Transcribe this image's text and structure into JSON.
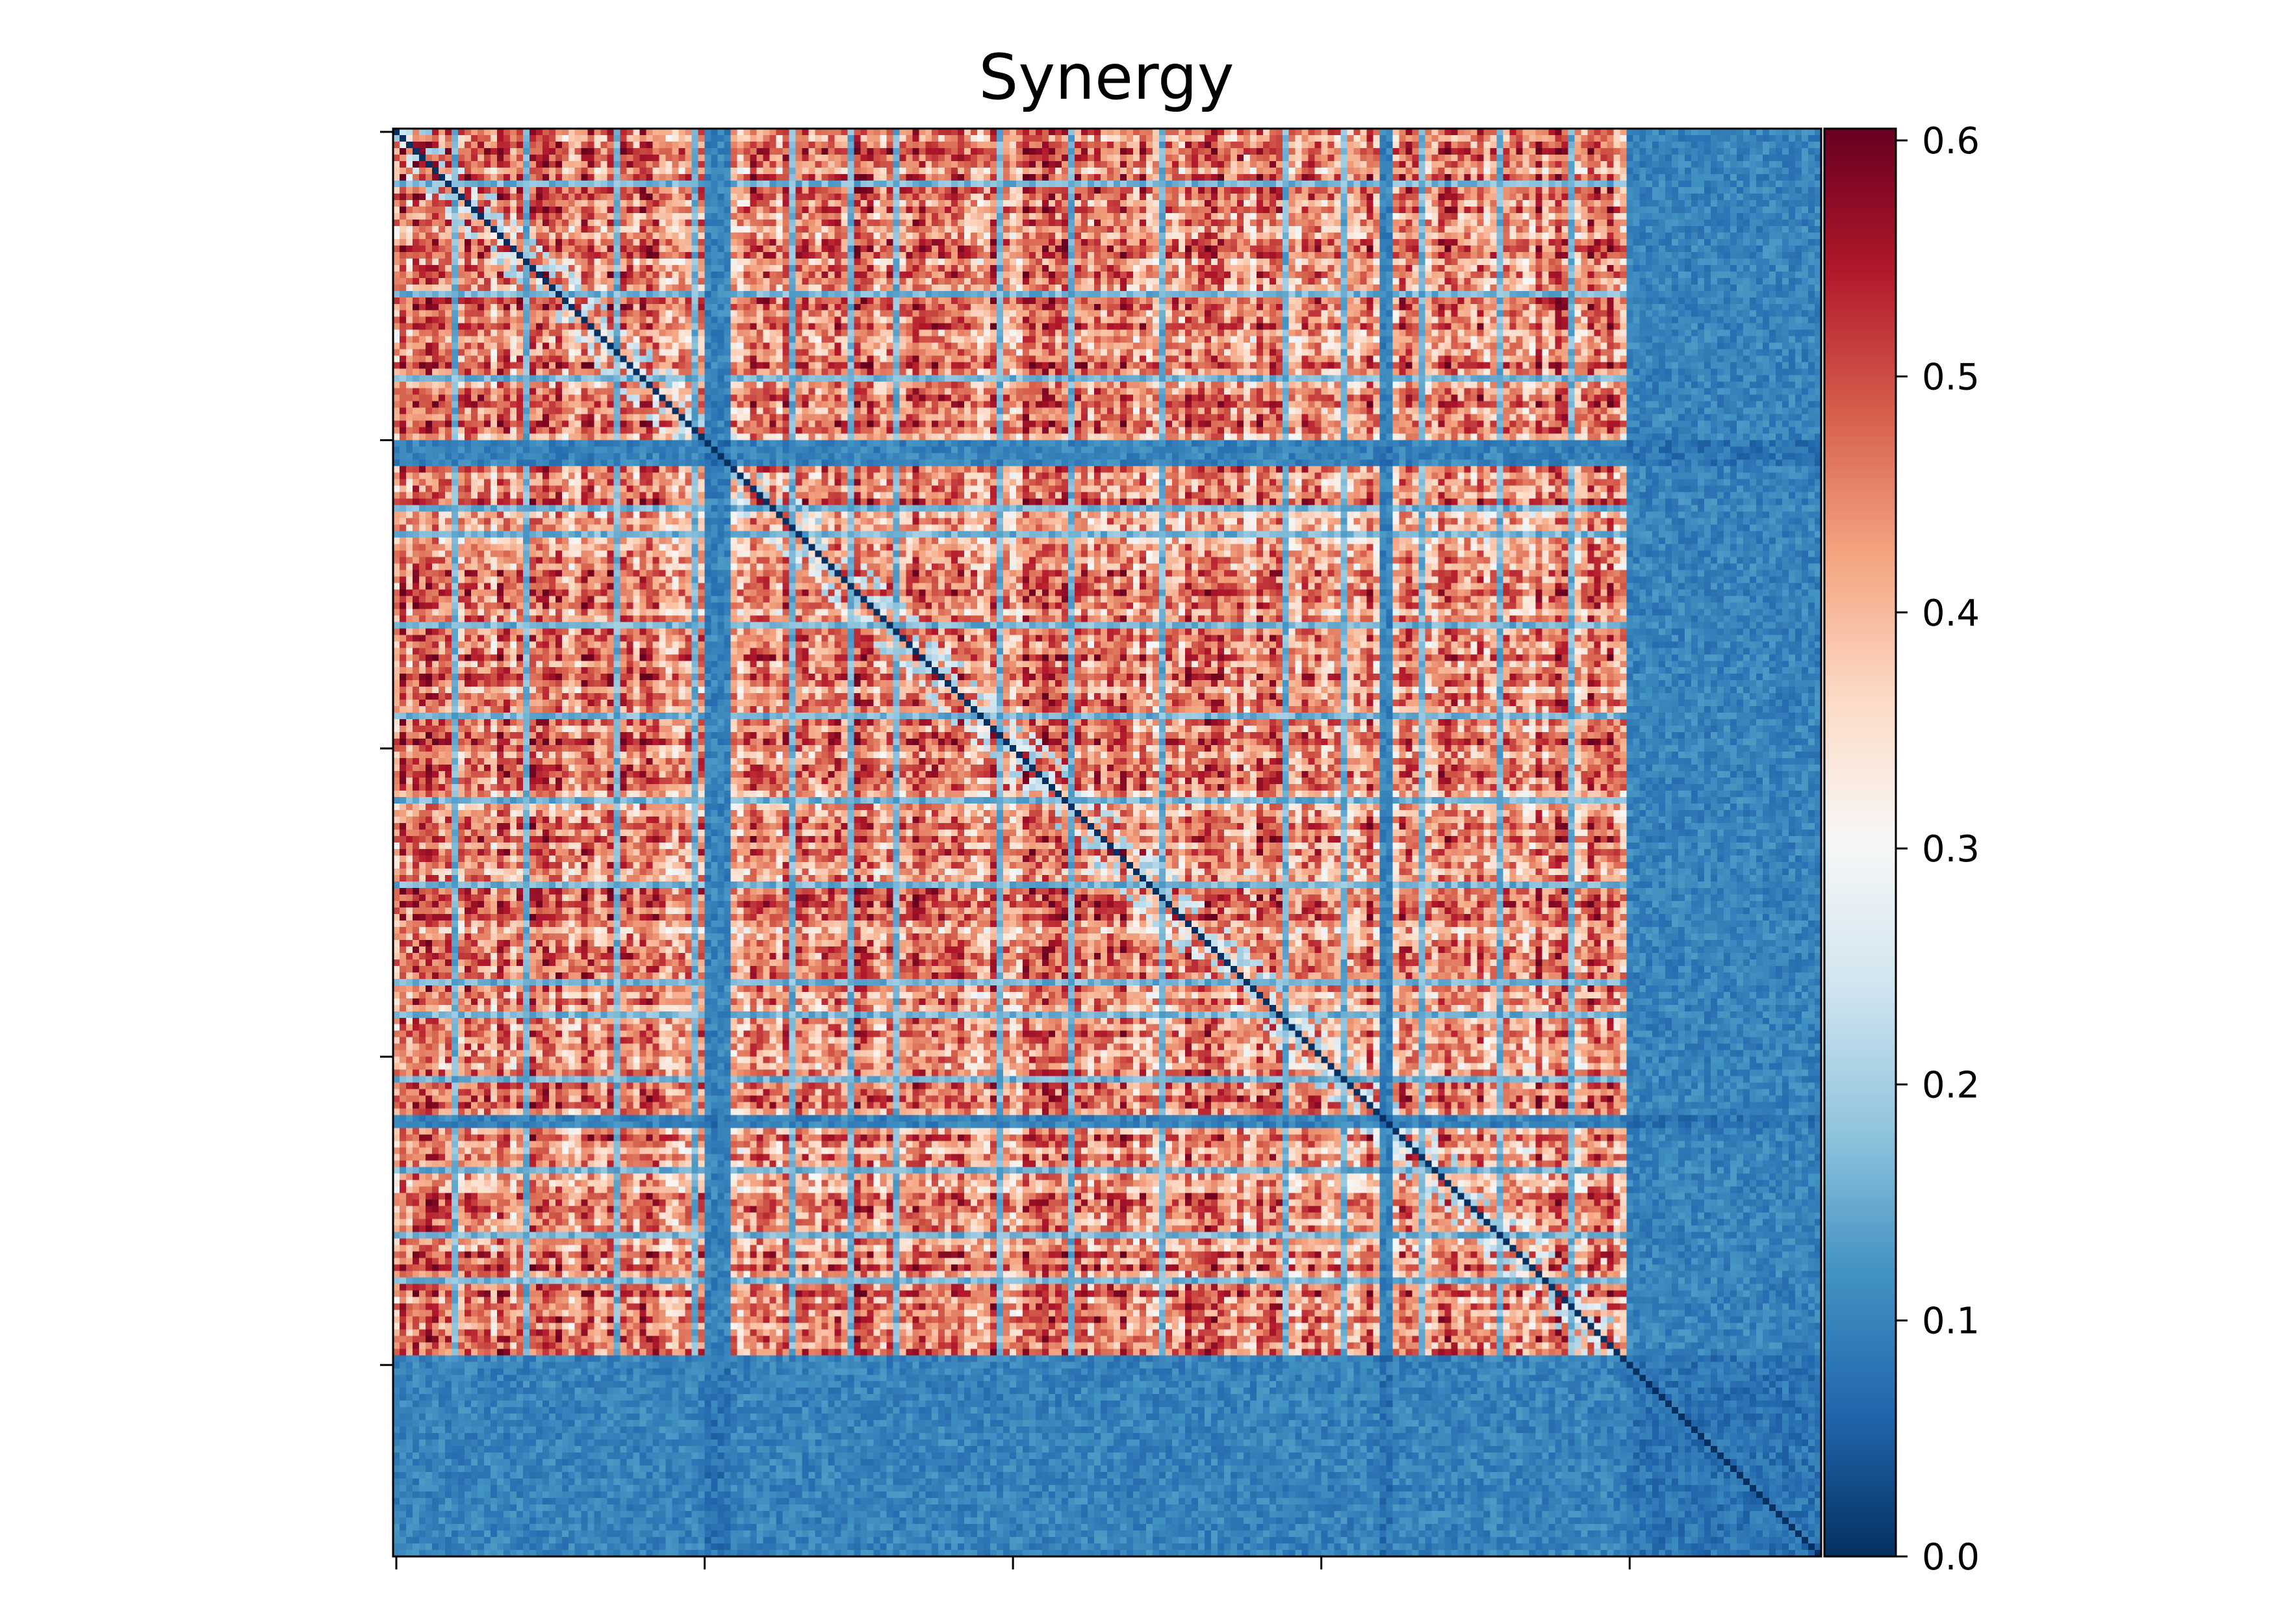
{
  "chart_data": {
    "type": "heatmap",
    "title": "Synergy",
    "xlabel": "",
    "ylabel": "",
    "matrix_size": 220,
    "x_ticks": [
      "",
      "",
      "",
      "",
      ""
    ],
    "y_ticks": [
      "",
      "",
      "",
      "",
      ""
    ],
    "tick_positions": [
      0,
      47.5,
      95,
      142.5,
      190
    ],
    "colorbar": {
      "range": [
        0.0,
        0.605
      ],
      "ticks": [
        0.0,
        0.1,
        0.2,
        0.3,
        0.4,
        0.5,
        0.6
      ],
      "tick_labels": [
        "0.0",
        "0.1",
        "0.2",
        "0.3",
        "0.4",
        "0.5",
        "0.6"
      ],
      "colormap": "RdBu_r",
      "stops": [
        "#053061",
        "#2166ac",
        "#4393c3",
        "#92c5de",
        "#d1e5f0",
        "#f7f7f7",
        "#fddbc7",
        "#f4a582",
        "#d6604d",
        "#b2182b",
        "#67001f"
      ]
    },
    "block_rows": {
      "low_blue": [
        [
          48,
          52
        ],
        [
          152,
          154
        ],
        [
          189,
          220
        ]
      ],
      "blue_lines": [
        8,
        25,
        38,
        58,
        62,
        76,
        90,
        103,
        116,
        131,
        136,
        146,
        160,
        170,
        177
      ]
    },
    "block_cols": {
      "low_blue": [
        [
          48,
          52
        ],
        [
          152,
          154
        ],
        [
          190,
          220
        ]
      ],
      "blue_lines": [
        9,
        20,
        34,
        46,
        61,
        70,
        77,
        93,
        104,
        118,
        137,
        146,
        158,
        170,
        181
      ]
    },
    "diagonal_value": 0.0,
    "typical_red_value": 0.45,
    "typical_blue_value": 0.1
  }
}
